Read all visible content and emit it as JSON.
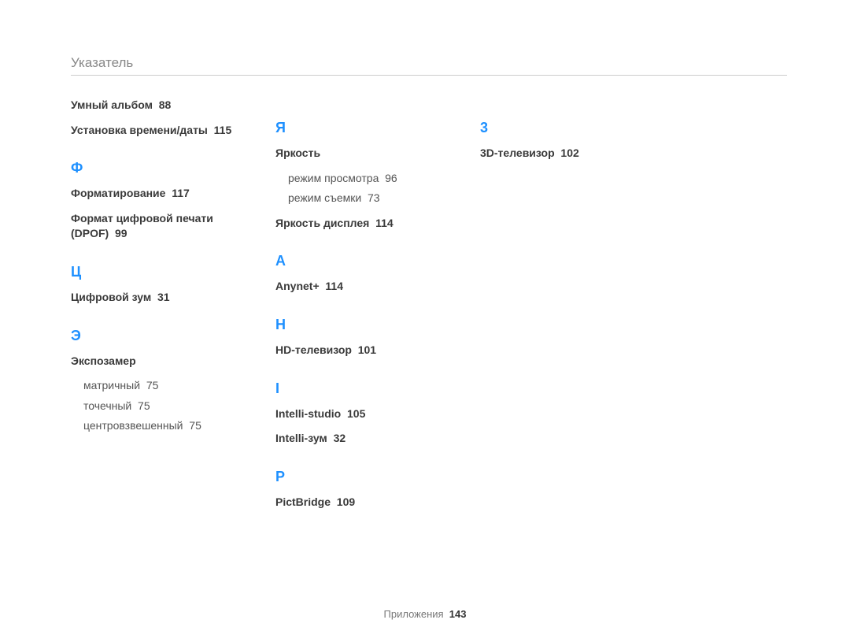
{
  "header": "Указатель",
  "footer": {
    "label": "Приложения",
    "page": "143"
  },
  "columns": [
    {
      "blocks": [
        {
          "entries": [
            {
              "t": "Умный альбом",
              "p": "88"
            },
            {
              "t": "Установка времени/даты",
              "p": "115"
            }
          ]
        },
        {
          "letter": "Ф",
          "entries": [
            {
              "t": "Форматирование",
              "p": "117"
            },
            {
              "t": "Формат цифровой печати (DPOF)",
              "p": "99"
            }
          ]
        },
        {
          "letter": "Ц",
          "entries": [
            {
              "t": "Цифровой зум",
              "p": "31"
            }
          ]
        },
        {
          "letter": "Э",
          "entries": [
            {
              "t": "Экспозамер",
              "subs": [
                {
                  "t": "матричный",
                  "p": "75"
                },
                {
                  "t": "точечный",
                  "p": "75"
                },
                {
                  "t": "центровзвешенный",
                  "p": "75"
                }
              ]
            }
          ]
        }
      ]
    },
    {
      "blocks": [
        {
          "letter": "Я",
          "entries": [
            {
              "t": "Яркость",
              "subs": [
                {
                  "t": "режим просмотра",
                  "p": "96"
                },
                {
                  "t": "режим съемки",
                  "p": "73"
                }
              ]
            },
            {
              "t": "Яркость дисплея",
              "p": "114"
            }
          ]
        },
        {
          "letter": "A",
          "entries": [
            {
              "t": "Anynet+",
              "p": "114"
            }
          ]
        },
        {
          "letter": "H",
          "entries": [
            {
              "t": "HD-телевизор",
              "p": "101"
            }
          ]
        },
        {
          "letter": "I",
          "entries": [
            {
              "t": "Intelli-studio",
              "p": "105"
            },
            {
              "t": "Intelli-зум",
              "p": "32"
            }
          ]
        },
        {
          "letter": "P",
          "entries": [
            {
              "t": "PictBridge",
              "p": "109"
            }
          ]
        }
      ]
    },
    {
      "blocks": [
        {
          "letter": "3",
          "entries": [
            {
              "t": "3D-телевизор",
              "p": "102"
            }
          ]
        }
      ]
    }
  ]
}
